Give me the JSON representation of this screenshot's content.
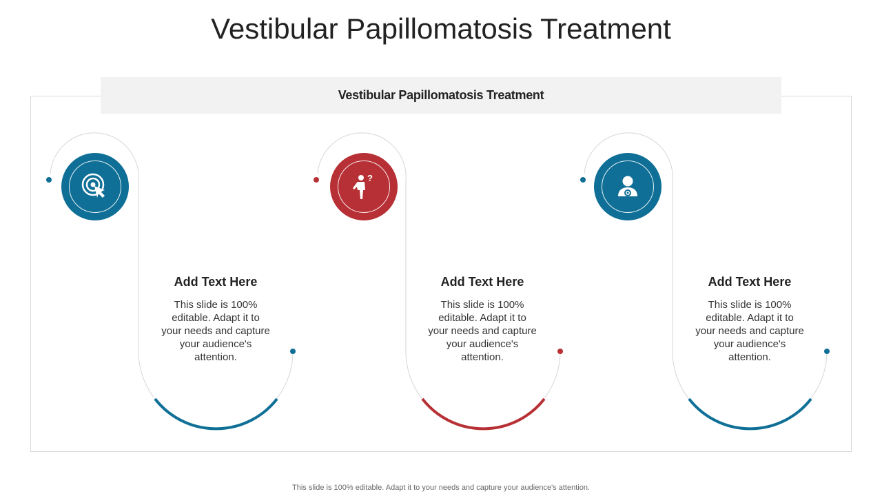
{
  "title": "Vestibular Papillomatosis Treatment",
  "banner": "Vestibular Papillomatosis Treatment",
  "colors": {
    "blue": "#0f6f96",
    "red": "#b73035",
    "line": "#d6d6d6"
  },
  "steps": [
    {
      "icon": "target-cursor-icon",
      "color": "blue",
      "heading": "Add Text Here",
      "body": "This slide is 100% editable. Adapt it to your needs and capture your audience's attention."
    },
    {
      "icon": "person-question-icon",
      "color": "red",
      "heading": "Add Text Here",
      "body": "This slide is 100% editable. Adapt it to your needs and capture your audience's attention."
    },
    {
      "icon": "user-gear-icon",
      "color": "blue",
      "heading": "Add Text Here",
      "body": "This slide is 100% editable. Adapt it to your needs and capture your audience's attention."
    }
  ],
  "footer": "This slide is 100% editable. Adapt it to your needs and capture your audience's attention."
}
